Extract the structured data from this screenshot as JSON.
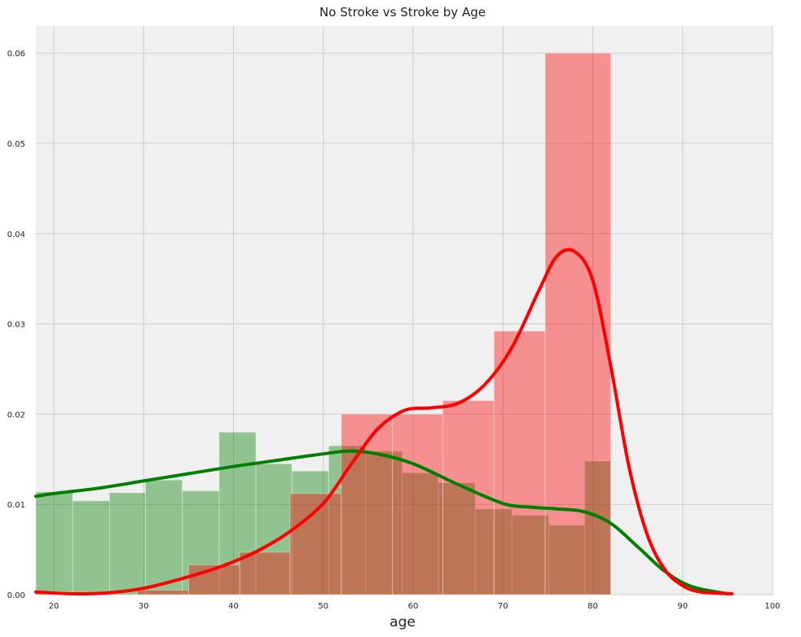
{
  "chart_data": {
    "type": "bar",
    "title": "No Stroke vs Stroke by Age",
    "xlabel": "age",
    "ylabel": "",
    "xlim": [
      18,
      100
    ],
    "ylim": [
      0,
      0.063
    ],
    "x_ticks": [
      "20",
      "30",
      "40",
      "50",
      "60",
      "70",
      "80",
      "90",
      "100"
    ],
    "y_ticks": [
      "0.00",
      "0.01",
      "0.02",
      "0.03",
      "0.04",
      "0.05",
      "0.06"
    ],
    "grid": true,
    "colors": {
      "background": "#f0f0f0",
      "grid": "#cbcbcb",
      "no_stroke": "#008000",
      "stroke": "#ff0000"
    },
    "histograms": [
      {
        "id": "no_stroke",
        "bin_edges": [
          18,
          22.1,
          26.2,
          30.2,
          34.3,
          38.4,
          42.5,
          46.5,
          50.6,
          54.7,
          58.8,
          62.8,
          66.9,
          71.0,
          75.1,
          79.1,
          82
        ],
        "values": [
          0.0114,
          0.0104,
          0.0113,
          0.0127,
          0.0115,
          0.018,
          0.0145,
          0.0137,
          0.0165,
          0.0159,
          0.0135,
          0.0124,
          0.0095,
          0.0088,
          0.0077,
          0.0148
        ]
      },
      {
        "id": "stroke",
        "bin_edges": [
          18,
          23.7,
          29.3,
          35.0,
          40.7,
          46.3,
          52.0,
          57.7,
          63.3,
          69.0,
          74.7,
          82
        ],
        "values": [
          0.0003,
          0.0,
          0.0005,
          0.0033,
          0.0047,
          0.0112,
          0.02,
          0.02,
          0.0215,
          0.0292,
          0.06
        ]
      }
    ],
    "series": [
      {
        "id": "no_stroke_kde",
        "x": [
          18,
          20,
          25,
          30,
          35,
          40,
          45,
          50,
          53,
          56,
          60,
          65,
          70,
          73,
          76,
          79,
          82,
          85,
          88,
          91,
          95
        ],
        "values": [
          0.0109,
          0.0112,
          0.0118,
          0.0126,
          0.0134,
          0.0142,
          0.0149,
          0.0156,
          0.0159,
          0.0156,
          0.0145,
          0.0122,
          0.0101,
          0.0097,
          0.0095,
          0.0092,
          0.0079,
          0.0053,
          0.0026,
          0.0009,
          0.0001
        ]
      },
      {
        "id": "stroke_kde",
        "x": [
          18,
          22,
          26,
          30,
          34,
          38,
          42,
          46,
          50,
          53,
          56,
          59,
          62,
          65,
          68,
          71,
          74,
          76,
          78,
          80,
          82,
          84,
          86,
          88,
          90,
          92,
          95.5
        ],
        "values": [
          0.0003,
          0.0001,
          0.0002,
          0.0007,
          0.0017,
          0.0029,
          0.0045,
          0.0068,
          0.0101,
          0.0143,
          0.0183,
          0.0204,
          0.0207,
          0.0212,
          0.0233,
          0.0274,
          0.0337,
          0.0375,
          0.038,
          0.0348,
          0.0253,
          0.0143,
          0.0068,
          0.0028,
          0.001,
          0.0003,
          0.0001
        ]
      }
    ]
  }
}
